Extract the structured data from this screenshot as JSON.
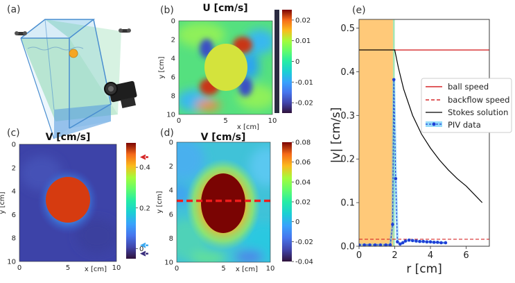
{
  "panels": {
    "a": {
      "label": "(a)"
    },
    "b": {
      "label": "(b)"
    },
    "c": {
      "label": "(c)"
    },
    "d": {
      "label": "(d)"
    },
    "e": {
      "label": "(e)"
    }
  },
  "chart_data": [
    {
      "type": "heatmap",
      "panel": "(b)",
      "title": "U [cm/s]",
      "xlabel": "x [cm]",
      "ylabel": "y [cm]",
      "xticks": [
        "0",
        "5",
        "10"
      ],
      "yticks": [
        "0",
        "2",
        "4",
        "6",
        "8",
        "10"
      ],
      "colorbar_ticks": [
        "0.02",
        "0.01",
        "0",
        "-0.01",
        "-0.02"
      ],
      "colorbar_range": [
        -0.025,
        0.025
      ]
    },
    {
      "type": "heatmap",
      "panel": "(c)",
      "title": "V [cm/s]",
      "xlabel": "x [cm]",
      "ylabel": "y [cm]",
      "xticks": [
        "0",
        "5",
        "10"
      ],
      "yticks": [
        "0",
        "2",
        "4",
        "6",
        "8",
        "10"
      ],
      "colorbar_ticks": [
        "0.4",
        "0.2",
        "0"
      ],
      "colorbar_range": [
        -0.05,
        0.52
      ],
      "arrow_markers": [
        0.45,
        0.016,
        -0.025
      ]
    },
    {
      "type": "heatmap",
      "panel": "(d)",
      "title": "V [cm/s]",
      "xlabel": "x [cm]",
      "ylabel": "y [cm]",
      "xticks": [
        "0",
        "5",
        "10"
      ],
      "yticks": [
        "0",
        "2",
        "4",
        "6",
        "8",
        "10"
      ],
      "colorbar_ticks": [
        "0.08",
        "0.06",
        "0.04",
        "0.02",
        "0",
        "-0.02",
        "-0.04"
      ],
      "colorbar_range": [
        -0.04,
        0.08
      ],
      "cut_line_y": 5.0
    },
    {
      "type": "line",
      "panel": "(e)",
      "xlabel": "r [cm]",
      "ylabel": "|v| [cm/s]",
      "xlim": [
        0,
        7.3
      ],
      "ylim": [
        0,
        0.52
      ],
      "xticks": [
        "0",
        "2",
        "4",
        "6"
      ],
      "yticks": [
        "0.0",
        "0.1",
        "0.2",
        "0.3",
        "0.4",
        "0.5"
      ],
      "ball_region_r": 1.9,
      "legend": [
        "ball speed",
        "backflow speed",
        "Stokes solution",
        "PIV data"
      ],
      "series": [
        {
          "name": "ball speed",
          "x": [
            1.95,
            7.3
          ],
          "y": [
            0.45,
            0.45
          ],
          "color": "#d62728"
        },
        {
          "name": "backflow speed",
          "x": [
            0,
            7.3
          ],
          "y": [
            0.016,
            0.016
          ],
          "color": "#d62728"
        },
        {
          "name": "Stokes solution",
          "x": [
            0,
            2.0,
            2.2,
            2.5,
            3.0,
            3.5,
            4.0,
            4.5,
            5.0,
            5.5,
            6.0,
            6.5,
            6.9
          ],
          "y": [
            0.45,
            0.45,
            0.41,
            0.36,
            0.3,
            0.257,
            0.225,
            0.198,
            0.175,
            0.155,
            0.138,
            0.117,
            0.1
          ],
          "color": "#000000"
        },
        {
          "name": "PIV data",
          "x": [
            0.0,
            0.3,
            0.6,
            0.9,
            1.2,
            1.5,
            1.75,
            1.88,
            1.95,
            2.05,
            2.15,
            2.3,
            2.45,
            2.6,
            2.8,
            3.0,
            3.2,
            3.4,
            3.6,
            3.8,
            4.0,
            4.2,
            4.4,
            4.6,
            4.85
          ],
          "y": [
            0.003,
            0.003,
            0.003,
            0.003,
            0.003,
            0.003,
            0.003,
            0.05,
            0.382,
            0.155,
            0.01,
            0.005,
            0.008,
            0.012,
            0.014,
            0.013,
            0.012,
            0.011,
            0.011,
            0.01,
            0.01,
            0.009,
            0.009,
            0.008,
            0.008
          ],
          "color": "#1f3fd6"
        }
      ]
    }
  ]
}
